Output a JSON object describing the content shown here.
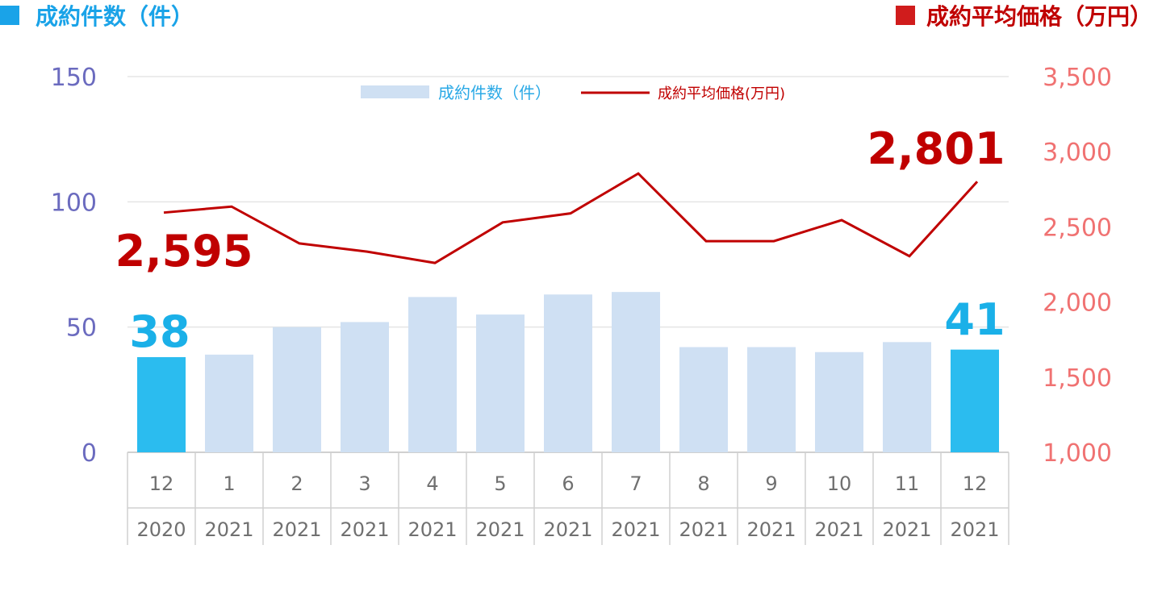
{
  "chart_data": {
    "type": "bar",
    "title_left": "成約件数（件）",
    "title_right": "成約平均価格（万円）",
    "categories": [
      {
        "month": "12",
        "year": "2020"
      },
      {
        "month": "1",
        "year": "2021"
      },
      {
        "month": "2",
        "year": "2021"
      },
      {
        "month": "3",
        "year": "2021"
      },
      {
        "month": "4",
        "year": "2021"
      },
      {
        "month": "5",
        "year": "2021"
      },
      {
        "month": "6",
        "year": "2021"
      },
      {
        "month": "7",
        "year": "2021"
      },
      {
        "month": "8",
        "year": "2021"
      },
      {
        "month": "9",
        "year": "2021"
      },
      {
        "month": "10",
        "year": "2021"
      },
      {
        "month": "11",
        "year": "2021"
      },
      {
        "month": "12",
        "year": "2021"
      }
    ],
    "series": [
      {
        "name": "成約件数（件）",
        "type": "bar",
        "axis": "left",
        "values": [
          38,
          39,
          50,
          52,
          62,
          55,
          63,
          64,
          42,
          42,
          40,
          44,
          41
        ],
        "highlight_indices": [
          0,
          12
        ]
      },
      {
        "name": "成約平均価格(万円)",
        "type": "line",
        "axis": "right",
        "values": [
          2595,
          2635,
          2390,
          2335,
          2260,
          2530,
          2590,
          2855,
          2405,
          2405,
          2545,
          2305,
          2801
        ]
      }
    ],
    "y_left": {
      "min": 0,
      "max": 150,
      "ticks": [
        "0",
        "50",
        "100",
        "150"
      ]
    },
    "y_right": {
      "min": 1000,
      "max": 3500,
      "ticks": [
        "1,000",
        "1,500",
        "2,000",
        "2,500",
        "3,000",
        "3,500"
      ]
    },
    "callouts": {
      "bar_first": "38",
      "bar_last": "41",
      "line_first": "2,595",
      "line_last": "2,801"
    },
    "legend_position": "top-center",
    "gridlines": true,
    "colors": {
      "bar": "#cfe0f3",
      "bar_highlight": "#2bbcef",
      "line": "#c00000",
      "title_left": "#1aa3e8",
      "title_right": "#c00000",
      "marker_left": "#1aa3e8",
      "marker_right": "#d01c1c",
      "tick_left": "#6b6bbf",
      "tick_right": "#f07272",
      "callout_bar": "#1ab0e8",
      "callout_line": "#c00000",
      "legend_text_bar": "#2aa9e6",
      "legend_text_line": "#c00000",
      "grid": "#e5e5e5",
      "table_border": "#d0d0d0"
    }
  }
}
